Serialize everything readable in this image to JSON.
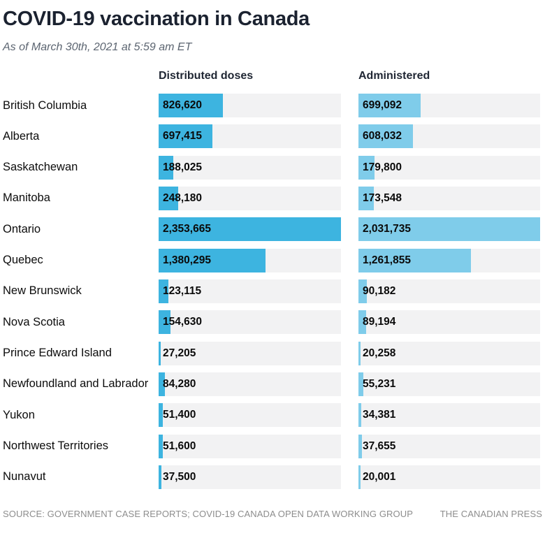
{
  "chart_data": {
    "type": "bar",
    "orientation": "horizontal",
    "title": "COVID-19 vaccination in Canada",
    "subtitle": "As of March 30th, 2021 at 5:59 am ET",
    "grid": false,
    "legend_position": "column-headers",
    "track_color": "#f2f2f3",
    "categories": [
      "British Columbia",
      "Alberta",
      "Saskatchewan",
      "Manitoba",
      "Ontario",
      "Quebec",
      "New Brunswick",
      "Nova Scotia",
      "Prince Edward Island",
      "Newfoundland and Labrador",
      "Yukon",
      "Northwest Territories",
      "Nunavut"
    ],
    "series": [
      {
        "key": "distributed",
        "name": "Distributed doses",
        "color": "#3db4e0",
        "axis_max": 2353665,
        "values": [
          826620,
          697415,
          188025,
          248180,
          2353665,
          1380295,
          123115,
          154630,
          27205,
          84280,
          51400,
          51600,
          37500
        ]
      },
      {
        "key": "administered",
        "name": "Administered",
        "color": "#7fccea",
        "axis_max": 2031735,
        "values": [
          699092,
          608032,
          179800,
          173548,
          2031735,
          1261855,
          90182,
          89194,
          20258,
          55231,
          34381,
          37655,
          20001
        ]
      }
    ]
  },
  "footer": {
    "source": "SOURCE: GOVERNMENT CASE REPORTS; COVID-19 CANADA OPEN DATA WORKING GROUP",
    "credit": "THE CANADIAN PRESS"
  }
}
